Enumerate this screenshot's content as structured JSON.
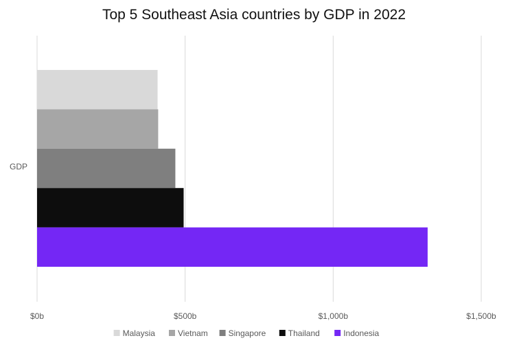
{
  "chart_data": {
    "type": "bar",
    "orientation": "horizontal",
    "title": "Top 5 Southeast Asia countries by GDP in 2022",
    "categories": [
      "GDP"
    ],
    "series": [
      {
        "name": "Malaysia",
        "values": [
          407
        ],
        "color": "#d9d9d9"
      },
      {
        "name": "Vietnam",
        "values": [
          409
        ],
        "color": "#a6a6a6"
      },
      {
        "name": "Singapore",
        "values": [
          467
        ],
        "color": "#7f7f7f"
      },
      {
        "name": "Thailand",
        "values": [
          495
        ],
        "color": "#0d0d0d"
      },
      {
        "name": "Indonesia",
        "values": [
          1319
        ],
        "color": "#7427f5"
      }
    ],
    "x_ticks": [
      {
        "value": 0,
        "label": "$0b"
      },
      {
        "value": 500,
        "label": "$500b"
      },
      {
        "value": 1000,
        "label": "$1,000b"
      },
      {
        "value": 1500,
        "label": "$1,500b"
      }
    ],
    "xlim": [
      0,
      1500
    ],
    "xlabel": "",
    "ylabel": "",
    "grid": "vertical",
    "legend_position": "bottom"
  }
}
